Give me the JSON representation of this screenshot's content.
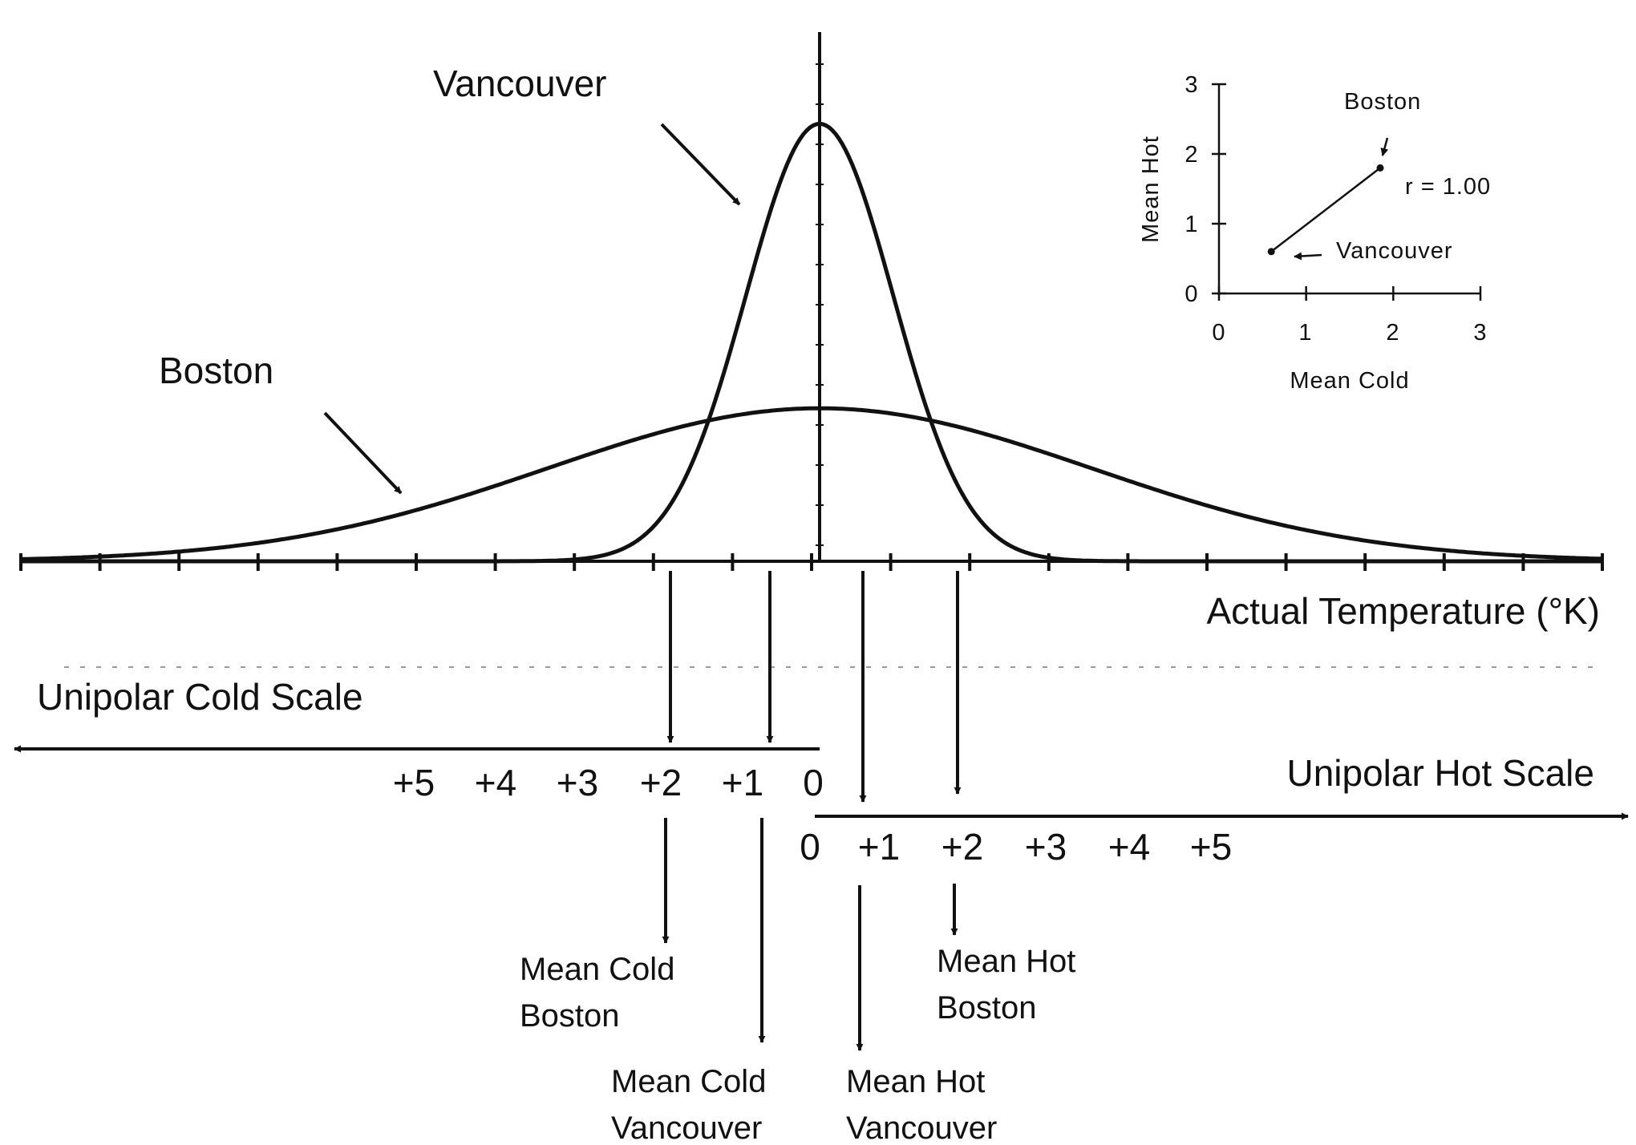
{
  "labels": {
    "vancouver": "Vancouver",
    "boston": "Boston",
    "actual_temperature": "Actual Temperature (°K)",
    "cold_scale": "Unipolar Cold Scale",
    "hot_scale": "Unipolar Hot Scale",
    "mean_cold_boston": [
      "Mean Cold",
      "Boston"
    ],
    "mean_cold_vancouver": [
      "Mean Cold",
      "Vancouver"
    ],
    "mean_hot_boston": [
      "Mean Hot",
      "Boston"
    ],
    "mean_hot_vancouver": [
      "Mean Hot",
      "Vancouver"
    ]
  },
  "cold_scale_ticks": [
    "+5",
    "+4",
    "+3",
    "+2",
    "+1",
    "0"
  ],
  "hot_scale_ticks": [
    "0",
    "+1",
    "+2",
    "+3",
    "+4",
    "+5"
  ],
  "distributions": [
    {
      "name": "Vancouver",
      "peak": 2.2,
      "spread": "narrow"
    },
    {
      "name": "Boston",
      "peak": 0.9,
      "spread": "wide"
    }
  ],
  "inset": {
    "type": "scatter",
    "xlabel": "Mean Cold",
    "ylabel": "Mean Hot",
    "x_ticks": [
      "0",
      "1",
      "2",
      "3"
    ],
    "y_ticks": [
      "0",
      "1",
      "2",
      "3"
    ],
    "xlim": [
      0,
      3
    ],
    "ylim": [
      0,
      3
    ],
    "annotation": "r = 1.00",
    "points": [
      {
        "name": "Boston",
        "x": 1.85,
        "y": 1.8
      },
      {
        "name": "Vancouver",
        "x": 0.6,
        "y": 0.6
      }
    ]
  }
}
